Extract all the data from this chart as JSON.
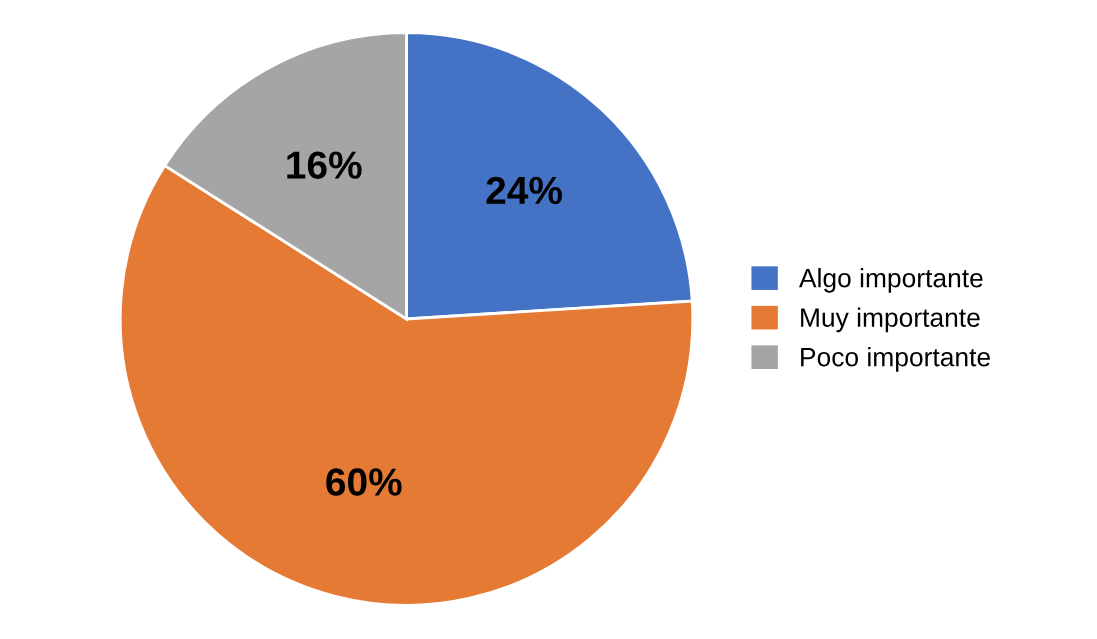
{
  "chart_data": {
    "type": "pie",
    "categories": [
      "Algo importante",
      "Muy importante",
      "Poco importante"
    ],
    "values": [
      24,
      60,
      16
    ],
    "colors": [
      "#4472c4",
      "#e57a35",
      "#a5a5a5"
    ],
    "value_labels": [
      "24%",
      "60%",
      "16%"
    ],
    "legend": "right"
  }
}
